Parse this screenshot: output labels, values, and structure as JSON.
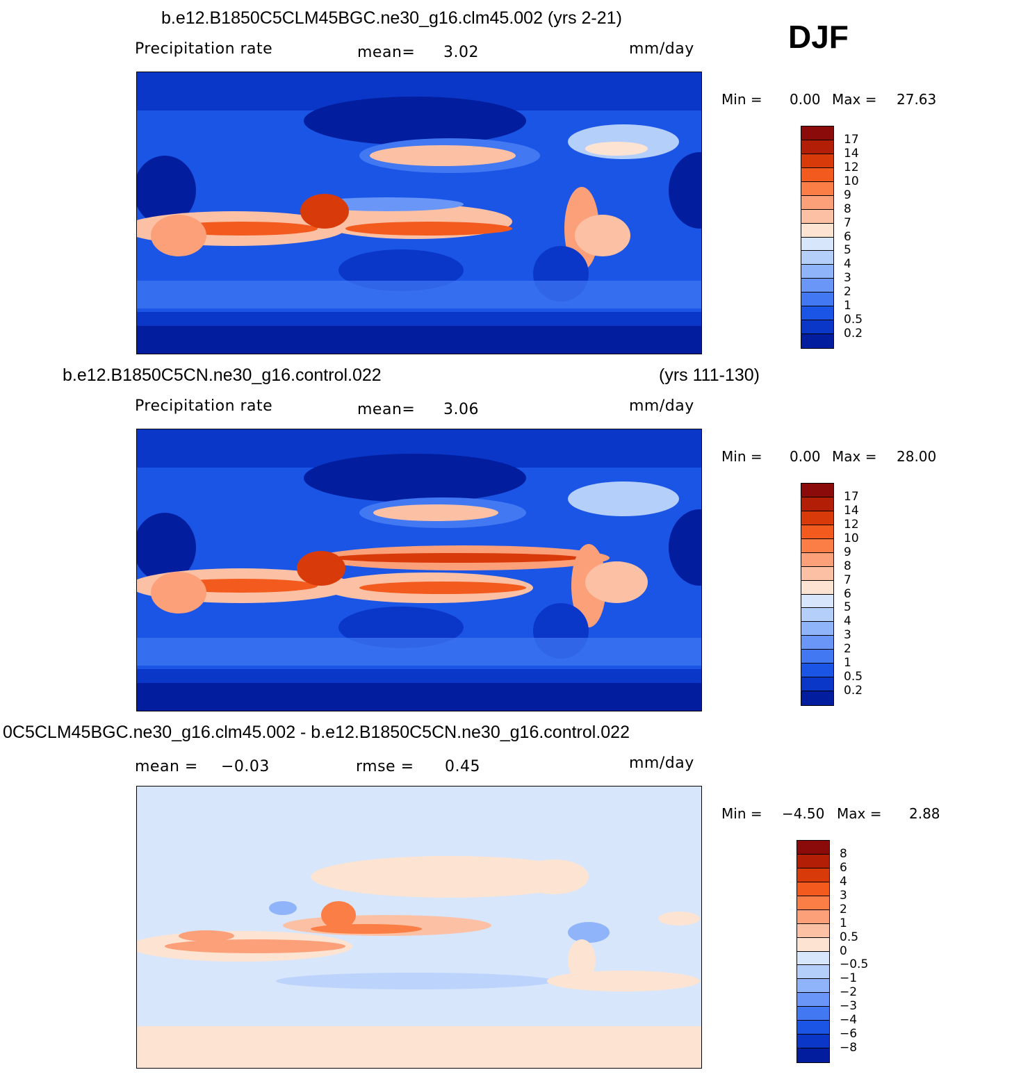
{
  "season": "DJF",
  "panels": [
    {
      "title": "b.e12.B1850C5CLM45BGC.ne30_g16.clm45.002 (yrs 2-21)",
      "title_right": "",
      "variable": "Precipitation  rate",
      "stat1_label": "mean=",
      "stat1_value": "3.02",
      "stat2_label": "",
      "stat2_value": "",
      "units": "mm/day",
      "min_label": "Min  =",
      "min_value": "0.00",
      "max_label": "Max  =",
      "max_value": "27.63",
      "levels": [
        "17",
        "14",
        "12",
        "10",
        "9",
        "8",
        "7",
        "6",
        "5",
        "4",
        "3",
        "2",
        "1",
        "0.5",
        "0.2"
      ],
      "colors": [
        "#8b0a0a",
        "#b31e06",
        "#d93a0a",
        "#f25a1e",
        "#fb7e46",
        "#fca07a",
        "#fcc1a4",
        "#fde4d2",
        "#d7e6fb",
        "#b5cffb",
        "#8fb4fa",
        "#6996f7",
        "#4279f3",
        "#1b55e6",
        "#0a37c8",
        "#021e9e"
      ]
    },
    {
      "title": "b.e12.B1850C5CN.ne30_g16.control.022",
      "title_right": "(yrs 111-130)",
      "variable": "Precipitation  rate",
      "stat1_label": "mean=",
      "stat1_value": "3.06",
      "stat2_label": "",
      "stat2_value": "",
      "units": "mm/day",
      "min_label": "Min  =",
      "min_value": "0.00",
      "max_label": "Max  =",
      "max_value": "28.00",
      "levels": [
        "17",
        "14",
        "12",
        "10",
        "9",
        "8",
        "7",
        "6",
        "5",
        "4",
        "3",
        "2",
        "1",
        "0.5",
        "0.2"
      ],
      "colors": [
        "#8b0a0a",
        "#b31e06",
        "#d93a0a",
        "#f25a1e",
        "#fb7e46",
        "#fca07a",
        "#fcc1a4",
        "#fde4d2",
        "#d7e6fb",
        "#b5cffb",
        "#8fb4fa",
        "#6996f7",
        "#4279f3",
        "#1b55e6",
        "#0a37c8",
        "#021e9e"
      ]
    },
    {
      "title": "0C5CLM45BGC.ne30_g16.clm45.002 - b.e12.B1850C5CN.ne30_g16.control.022",
      "title_right": "",
      "variable": "",
      "stat1_label": "mean  =",
      "stat1_value": "−0.03",
      "stat2_label": "rmse  =",
      "stat2_value": "0.45",
      "units": "mm/day",
      "min_label": "Min  =",
      "min_value": "−4.50",
      "max_label": "Max  =",
      "max_value": "2.88",
      "levels": [
        "8",
        "6",
        "4",
        "3",
        "2",
        "1",
        "0.5",
        "0",
        "−0.5",
        "−1",
        "−2",
        "−3",
        "−4",
        "−6",
        "−8"
      ],
      "colors": [
        "#8b0a0a",
        "#b31e06",
        "#d93a0a",
        "#f25a1e",
        "#fb7e46",
        "#fca07a",
        "#fcc1a4",
        "#fde4d2",
        "#d7e6fb",
        "#b5cffb",
        "#8fb4fa",
        "#6996f7",
        "#4279f3",
        "#1b55e6",
        "#0a37c8",
        "#021e9e"
      ]
    }
  ],
  "chart_data": [
    {
      "type": "heatmap",
      "title": "b.e12.B1850C5CLM45BGC.ne30_g16.clm45.002 (yrs 2-21)",
      "variable": "Precipitation  rate",
      "units": "mm/day",
      "mean": 3.02,
      "min": 0.0,
      "max": 27.63,
      "contour_levels": [
        0.2,
        0.5,
        1,
        2,
        3,
        4,
        5,
        6,
        7,
        8,
        9,
        10,
        12,
        14,
        17
      ]
    },
    {
      "type": "heatmap",
      "title": "b.e12.B1850C5CN.ne30_g16.control.022 (yrs 111-130)",
      "variable": "Precipitation  rate",
      "units": "mm/day",
      "mean": 3.06,
      "min": 0.0,
      "max": 28.0,
      "contour_levels": [
        0.2,
        0.5,
        1,
        2,
        3,
        4,
        5,
        6,
        7,
        8,
        9,
        10,
        12,
        14,
        17
      ]
    },
    {
      "type": "heatmap",
      "title": "0C5CLM45BGC.ne30_g16.clm45.002 - b.e12.B1850C5CN.ne30_g16.control.022",
      "units": "mm/day",
      "mean": -0.03,
      "rmse": 0.45,
      "min": -4.5,
      "max": 2.88,
      "contour_levels": [
        -8,
        -6,
        -4,
        -3,
        -2,
        -1,
        -0.5,
        0,
        0.5,
        1,
        2,
        3,
        4,
        6,
        8
      ]
    }
  ]
}
